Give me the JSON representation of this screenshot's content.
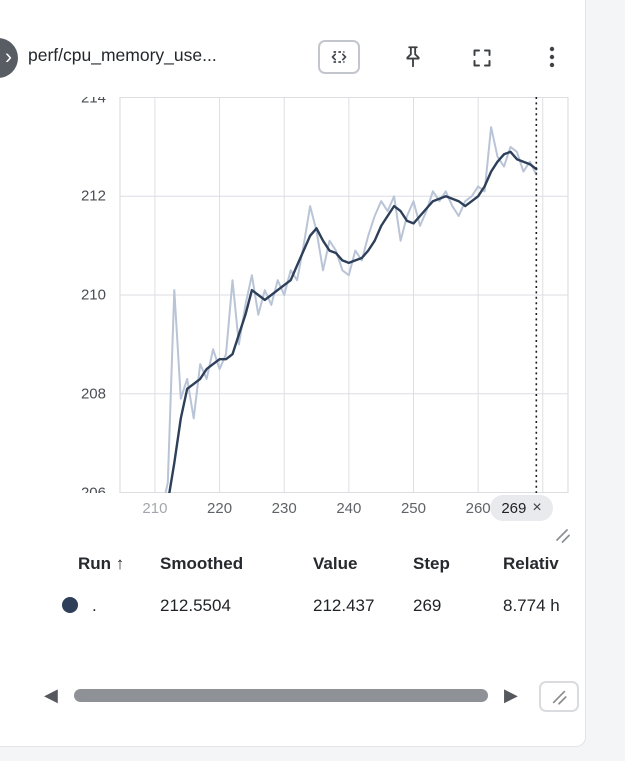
{
  "panel": {
    "title": "perf/cpu_memory_use..."
  },
  "icons": {
    "prev_glyph": "›",
    "scroll_left_glyph": "◀",
    "scroll_right_glyph": "▶"
  },
  "chart_data": {
    "type": "line",
    "title": "perf/cpu_memory_use...",
    "xlabel": "Step",
    "ylabel": "",
    "xlim": [
      204.6,
      273.9
    ],
    "ylim": [
      206,
      214
    ],
    "yticks": [
      206,
      208,
      210,
      212,
      214
    ],
    "ygrid": [
      206,
      208,
      210,
      212,
      214
    ],
    "xgrid": [
      210,
      220,
      230,
      240,
      250,
      260,
      270
    ],
    "xticks": [
      {
        "value": 210,
        "label": "210",
        "muted": true
      },
      {
        "value": 220,
        "label": "220",
        "muted": false
      },
      {
        "value": 230,
        "label": "230",
        "muted": false
      },
      {
        "value": 240,
        "label": "240",
        "muted": false
      },
      {
        "value": 250,
        "label": "250",
        "muted": false
      },
      {
        "value": 260,
        "label": "260",
        "muted": false
      }
    ],
    "grid": true,
    "legend_position": "none",
    "colors": {
      "grid": "#dcdee2",
      "crosshair": "#1b1c1e"
    },
    "crosshair": {
      "x": 269,
      "label": "269",
      "close_glyph": "×"
    },
    "x": [
      211,
      212,
      213,
      214,
      215,
      216,
      217,
      218,
      219,
      220,
      221,
      222,
      223,
      224,
      225,
      226,
      227,
      228,
      229,
      230,
      231,
      232,
      233,
      234,
      235,
      236,
      237,
      238,
      239,
      240,
      241,
      242,
      243,
      244,
      245,
      246,
      247,
      248,
      249,
      250,
      251,
      252,
      253,
      254,
      255,
      256,
      257,
      258,
      259,
      260,
      261,
      262,
      263,
      264,
      265,
      266,
      267,
      268,
      269
    ],
    "series": [
      {
        "name": "Value (raw)",
        "color": "#b9c4d7",
        "width": 2,
        "values": [
          205.6,
          206.2,
          210.1,
          207.9,
          208.3,
          207.5,
          208.6,
          208.3,
          208.9,
          208.5,
          208.8,
          210.3,
          209.0,
          209.8,
          210.4,
          209.6,
          210.1,
          209.8,
          210.3,
          210.0,
          210.5,
          210.3,
          211.0,
          211.8,
          211.3,
          210.5,
          211.1,
          210.9,
          210.5,
          210.4,
          210.9,
          210.7,
          211.2,
          211.6,
          211.9,
          211.7,
          212.0,
          211.1,
          211.6,
          211.9,
          211.4,
          211.7,
          212.1,
          211.9,
          212.1,
          211.8,
          211.6,
          211.9,
          212.0,
          212.2,
          212.1,
          213.4,
          212.8,
          212.6,
          213.0,
          212.9,
          212.5,
          212.7,
          212.437
        ]
      },
      {
        "name": "Smoothed",
        "color": "#2d3f59",
        "width": 2.4,
        "values": [
          205.2,
          205.8,
          206.6,
          207.5,
          208.1,
          208.2,
          208.3,
          208.5,
          208.6,
          208.7,
          208.7,
          208.8,
          209.2,
          209.6,
          210.1,
          210.0,
          209.9,
          210.0,
          210.1,
          210.2,
          210.3,
          210.6,
          210.9,
          211.2,
          211.35,
          211.1,
          210.9,
          210.85,
          210.7,
          210.65,
          210.7,
          210.75,
          210.9,
          211.1,
          211.4,
          211.6,
          211.8,
          211.7,
          211.5,
          211.45,
          211.6,
          211.75,
          211.9,
          211.95,
          212.0,
          211.95,
          211.9,
          211.8,
          211.9,
          212.0,
          212.2,
          212.5,
          212.7,
          212.85,
          212.9,
          212.75,
          212.7,
          212.65,
          212.5504
        ]
      }
    ]
  },
  "tooltip": {
    "headers": [
      "Run ↑",
      "Smoothed",
      "Value",
      "Step",
      "Relativ"
    ],
    "row": {
      "run": ".",
      "smoothed": "212.5504",
      "value": "212.437",
      "step": "269",
      "relative": "8.774 h",
      "color": "#2d3f59"
    }
  }
}
